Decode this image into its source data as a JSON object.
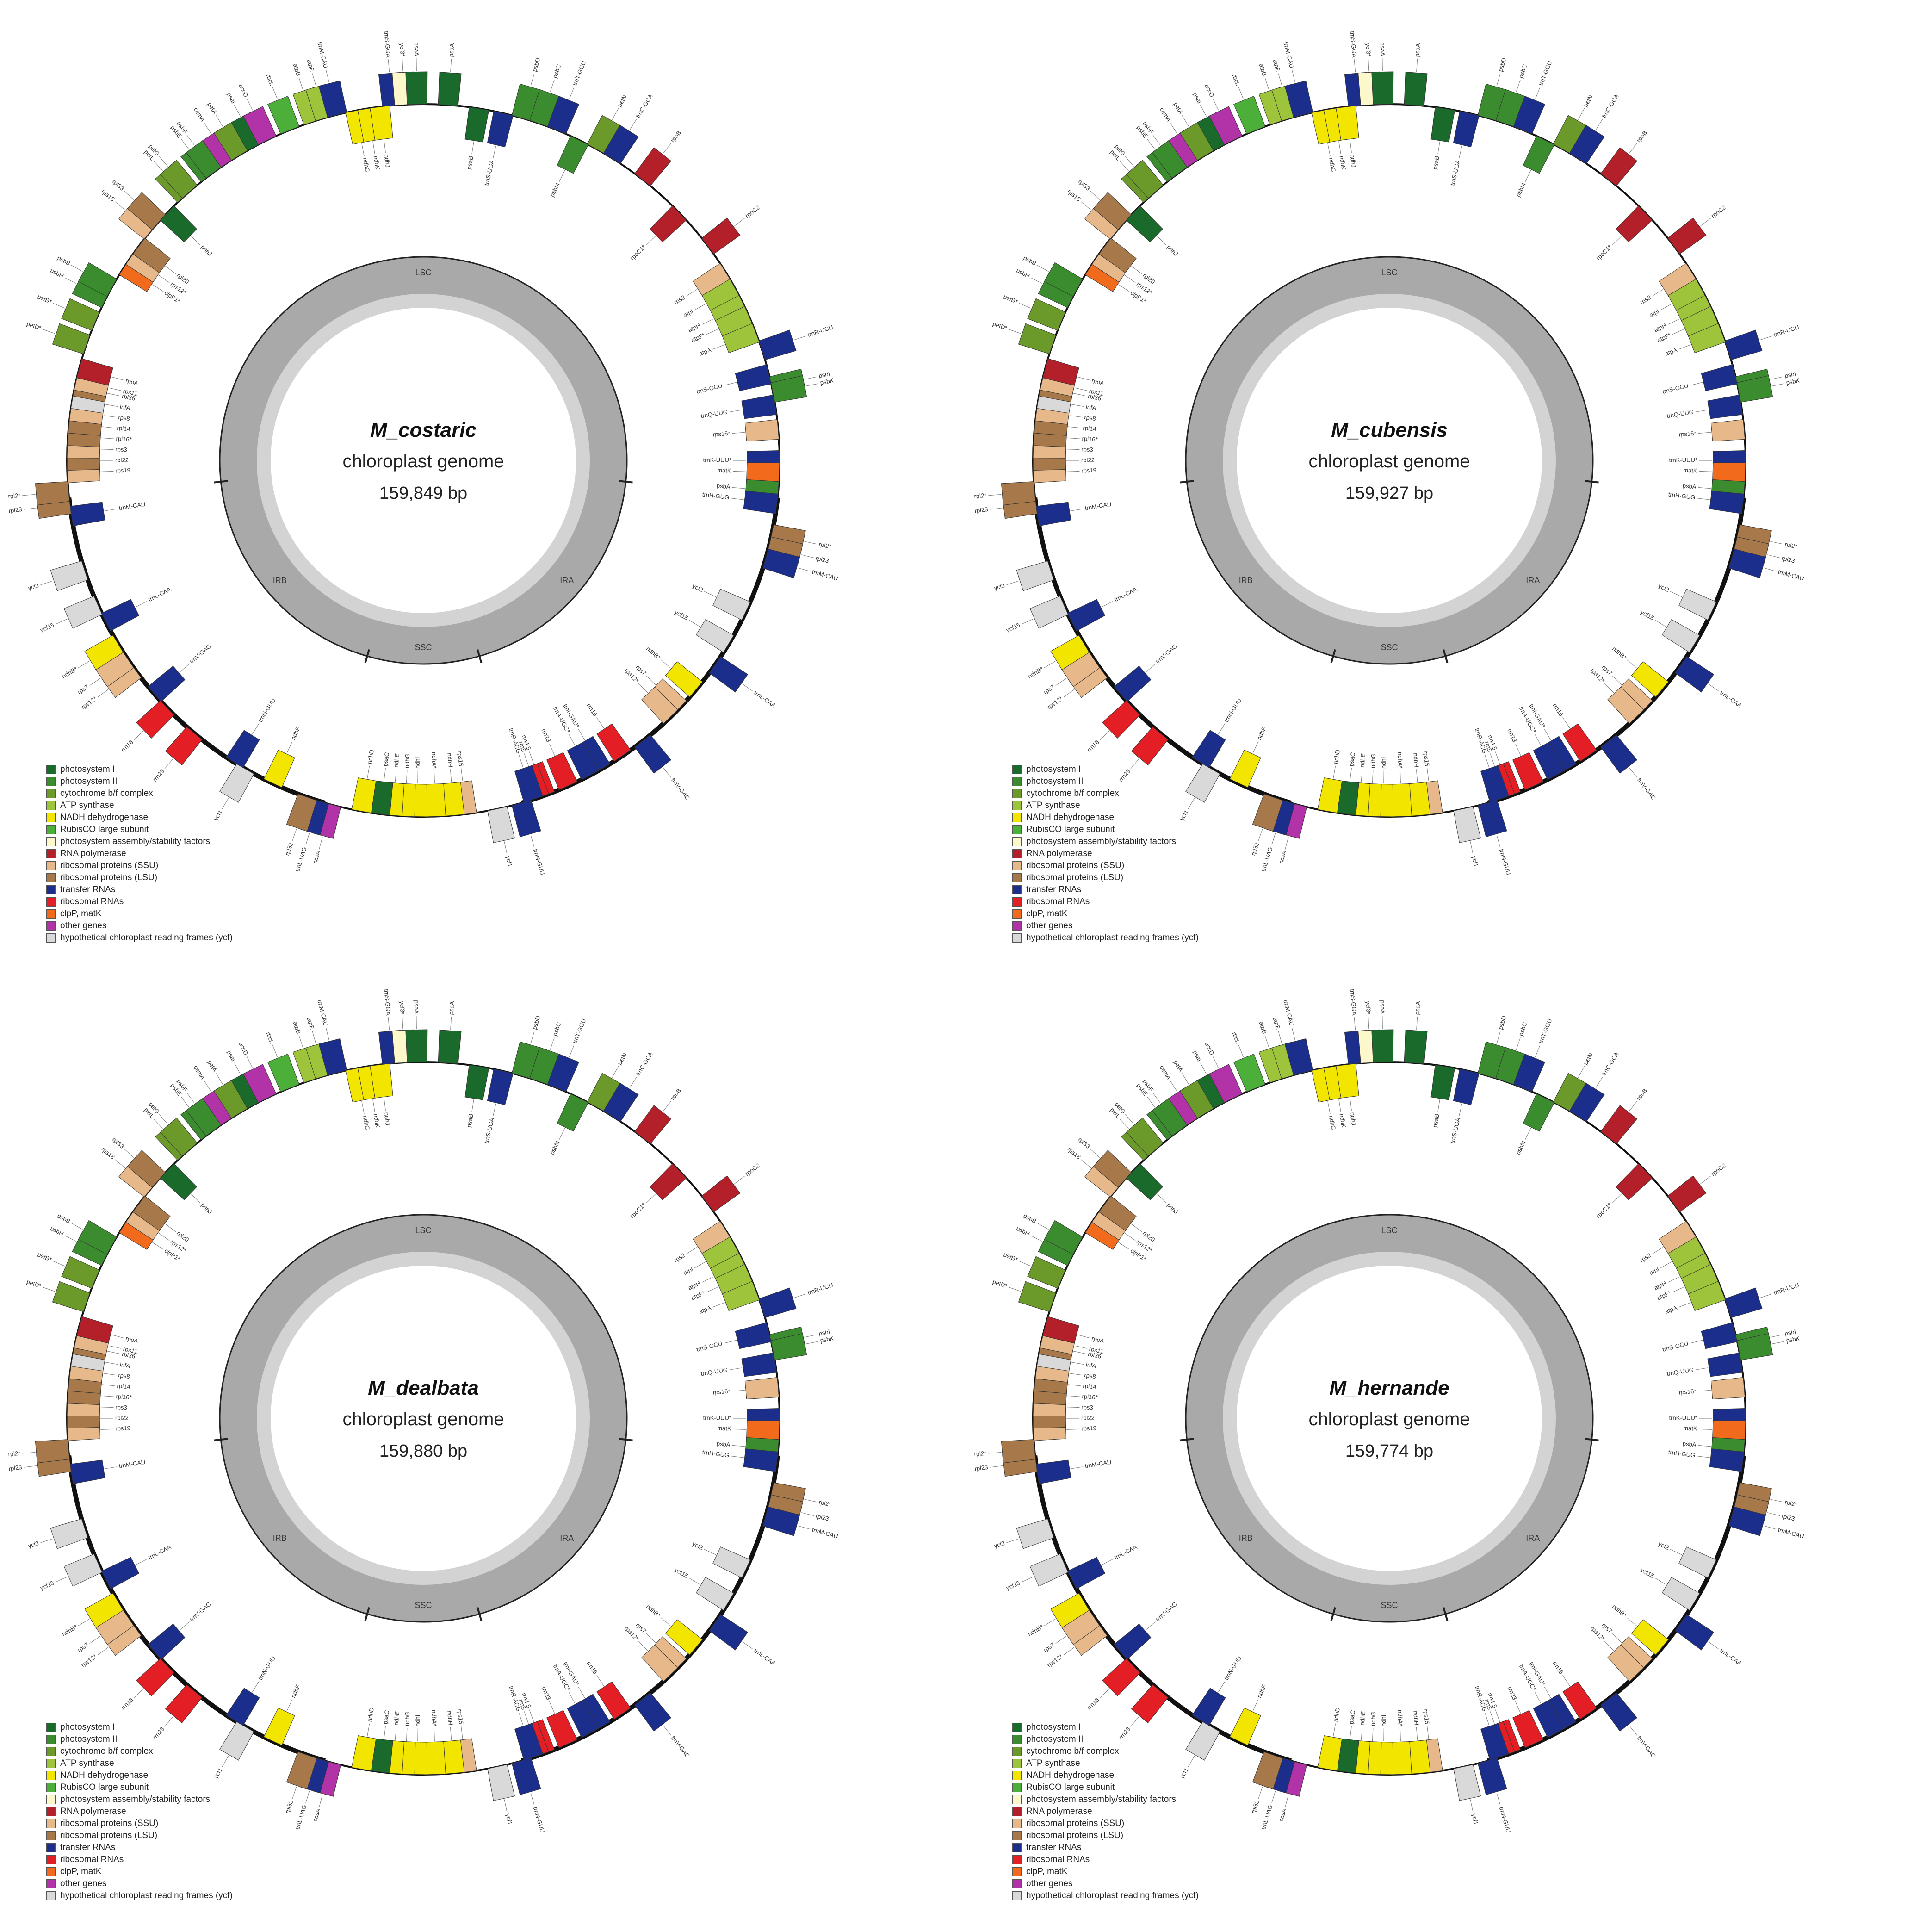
{
  "panels": [
    {
      "name": "M_costaric",
      "subtitle": "chloroplast genome",
      "length": "159,849 bp"
    },
    {
      "name": "M_cubensis",
      "subtitle": "chloroplast genome",
      "length": "159,927 bp"
    },
    {
      "name": "M_dealbata",
      "subtitle": "chloroplast genome",
      "length": "159,880 bp"
    },
    {
      "name": "M_hernande",
      "subtitle": "chloroplast genome",
      "length": "159,774 bp"
    }
  ],
  "region_labels": [
    "LSC",
    "IRA",
    "SSC",
    "IRB"
  ],
  "legend": [
    {
      "label": "photosystem I",
      "color": "#1a6b2b"
    },
    {
      "label": "photosystem II",
      "color": "#3a8c2f"
    },
    {
      "label": "cytochrome b/f complex",
      "color": "#6b9a2a"
    },
    {
      "label": "ATP synthase",
      "color": "#9dc43a"
    },
    {
      "label": "NADH dehydrogenase",
      "color": "#f2e600"
    },
    {
      "label": "RubisCO large subunit",
      "color": "#4caf3a"
    },
    {
      "label": "photosystem assembly/stability factors",
      "color": "#fdf7cc"
    },
    {
      "label": "RNA polymerase",
      "color": "#b3202a"
    },
    {
      "label": "ribosomal proteins (SSU)",
      "color": "#e6b88a"
    },
    {
      "label": "ribosomal proteins (LSU)",
      "color": "#a6784a"
    },
    {
      "label": "transfer RNAs",
      "color": "#1c2e8c"
    },
    {
      "label": "ribosomal RNAs",
      "color": "#e31e24"
    },
    {
      "label": "clpP, matK",
      "color": "#f26b1d"
    },
    {
      "label": "other genes",
      "color": "#b233a8"
    },
    {
      "label": "hypothetical chloroplast reading frames (ycf)",
      "color": "#d9d9d9"
    }
  ],
  "genes": [
    {
      "label": "psaA",
      "angle": 4,
      "color": "#1a6b2b",
      "out": true
    },
    {
      "label": "psaB",
      "angle": 9,
      "color": "#1a6b2b",
      "out": false
    },
    {
      "label": "trnS-UGA",
      "angle": 13,
      "color": "#1c2e8c",
      "out": false
    },
    {
      "label": "psbD",
      "angle": 16,
      "color": "#3a8c2f",
      "out": true
    },
    {
      "label": "psbC",
      "angle": 19,
      "color": "#3a8c2f",
      "out": true
    },
    {
      "label": "trnT-GGU",
      "angle": 22,
      "color": "#1c2e8c",
      "out": true
    },
    {
      "label": "psbM",
      "angle": 26,
      "color": "#3a8c2f",
      "out": false
    },
    {
      "label": "petN",
      "angle": 29,
      "color": "#6b9a2a",
      "out": true
    },
    {
      "label": "trnC-GCA",
      "angle": 32,
      "color": "#1c2e8c",
      "out": true
    },
    {
      "label": "rpoB",
      "angle": 38,
      "color": "#b3202a",
      "out": true
    },
    {
      "label": "rpoC1*",
      "angle": 46,
      "color": "#b3202a",
      "out": false
    },
    {
      "label": "rpoC2",
      "angle": 53,
      "color": "#b3202a",
      "out": true
    },
    {
      "label": "rps2",
      "angle": 58,
      "color": "#e6b88a",
      "out": false
    },
    {
      "label": "atpI",
      "angle": 61,
      "color": "#9dc43a",
      "out": false
    },
    {
      "label": "atpH",
      "angle": 64,
      "color": "#9dc43a",
      "out": false
    },
    {
      "label": "atpF*",
      "angle": 66,
      "color": "#9dc43a",
      "out": false
    },
    {
      "label": "atpA",
      "angle": 69,
      "color": "#9dc43a",
      "out": false
    },
    {
      "label": "trnR-UCU",
      "angle": 72,
      "color": "#1c2e8c",
      "out": true
    },
    {
      "label": "trnS-GCU",
      "angle": 76,
      "color": "#1c2e8c",
      "out": false
    },
    {
      "label": "psbI",
      "angle": 78,
      "color": "#3a8c2f",
      "out": true
    },
    {
      "label": "psbK",
      "angle": 79,
      "color": "#3a8c2f",
      "out": true
    },
    {
      "label": "trnQ-UUG",
      "angle": 81,
      "color": "#1c2e8c",
      "out": false
    },
    {
      "label": "rps16*",
      "angle": 85,
      "color": "#e6b88a",
      "out": false
    },
    {
      "label": "trnK-UUU*",
      "angle": 90,
      "color": "#1c2e8c",
      "out": false
    },
    {
      "label": "matK",
      "angle": 92,
      "color": "#f26b1d",
      "out": false
    },
    {
      "label": "psbA",
      "angle": 95,
      "color": "#3a8c2f",
      "out": false
    },
    {
      "label": "trnH-GUG",
      "angle": 97,
      "color": "#1c2e8c",
      "out": false
    },
    {
      "label": "rpl2*",
      "angle": 102,
      "color": "#a6784a",
      "out": true
    },
    {
      "label": "rpl23",
      "angle": 104,
      "color": "#a6784a",
      "out": true
    },
    {
      "label": "trnM-CAU",
      "angle": 106,
      "color": "#1c2e8c",
      "out": true
    },
    {
      "label": "ycf2",
      "angle": 115,
      "color": "#d9d9d9",
      "out": false
    },
    {
      "label": "ycf15",
      "angle": 121,
      "color": "#d9d9d9",
      "out": false
    },
    {
      "label": "trnL-CAA",
      "angle": 125,
      "color": "#1c2e8c",
      "out": true
    },
    {
      "label": "ndhB*",
      "angle": 130,
      "color": "#f2e600",
      "out": false
    },
    {
      "label": "rps7",
      "angle": 134,
      "color": "#e6b88a",
      "out": false
    },
    {
      "label": "rps12*",
      "angle": 136,
      "color": "#e6b88a",
      "out": false
    },
    {
      "label": "trnV-GAC",
      "angle": 142,
      "color": "#1c2e8c",
      "out": true
    },
    {
      "label": "rrn16",
      "angle": 146,
      "color": "#e31e24",
      "out": false
    },
    {
      "label": "trnI-GAU*",
      "angle": 150,
      "color": "#1c2e8c",
      "out": false
    },
    {
      "label": "trnA-UGC*",
      "angle": 152,
      "color": "#1c2e8c",
      "out": false
    },
    {
      "label": "rrn23",
      "angle": 156,
      "color": "#e31e24",
      "out": false
    },
    {
      "label": "rrn4.5",
      "angle": 160,
      "color": "#e31e24",
      "out": false
    },
    {
      "label": "rrn5",
      "angle": 161,
      "color": "#e31e24",
      "out": false
    },
    {
      "label": "trnR-ACG",
      "angle": 162,
      "color": "#1c2e8c",
      "out": false
    },
    {
      "label": "trnN-GUU",
      "angle": 164,
      "color": "#1c2e8c",
      "out": true
    },
    {
      "label": "ycf1",
      "angle": 168,
      "color": "#d9d9d9",
      "out": true
    },
    {
      "label": "rps15",
      "angle": 173,
      "color": "#e6b88a",
      "out": false
    },
    {
      "label": "ndhH",
      "angle": 175,
      "color": "#f2e600",
      "out": false
    },
    {
      "label": "ndhA*",
      "angle": 178,
      "color": "#f2e600",
      "out": false
    },
    {
      "label": "ndhI",
      "angle": 181,
      "color": "#f2e600",
      "out": false
    },
    {
      "label": "ndhG",
      "angle": 183,
      "color": "#f2e600",
      "out": false
    },
    {
      "label": "ndhE",
      "angle": 185,
      "color": "#f2e600",
      "out": false
    },
    {
      "label": "psaC",
      "angle": 187,
      "color": "#1a6b2b",
      "out": false
    },
    {
      "label": "ndhD",
      "angle": 190,
      "color": "#f2e600",
      "out": false
    },
    {
      "label": "ccsA",
      "angle": 195,
      "color": "#b233a8",
      "out": true
    },
    {
      "label": "trnL-UAG",
      "angle": 197,
      "color": "#1c2e8c",
      "out": true
    },
    {
      "label": "rpl32",
      "angle": 199,
      "color": "#a6784a",
      "out": true
    },
    {
      "label": "ndhF",
      "angle": 205,
      "color": "#f2e600",
      "out": false
    },
    {
      "label": "ycf1",
      "angle": 210,
      "color": "#d9d9d9",
      "out": true
    },
    {
      "label": "trnN-GUU",
      "angle": 212,
      "color": "#1c2e8c",
      "out": false
    },
    {
      "label": "rrn23",
      "angle": 220,
      "color": "#e31e24",
      "out": true
    },
    {
      "label": "rrn16",
      "angle": 226,
      "color": "#e31e24",
      "out": true
    },
    {
      "label": "trnV-GAC",
      "angle": 229,
      "color": "#1c2e8c",
      "out": false
    },
    {
      "label": "rps12*",
      "angle": 234,
      "color": "#e6b88a",
      "out": true
    },
    {
      "label": "rps7",
      "angle": 236,
      "color": "#e6b88a",
      "out": true
    },
    {
      "label": "ndhB*",
      "angle": 239,
      "color": "#f2e600",
      "out": true
    },
    {
      "label": "trnL-CAA",
      "angle": 243,
      "color": "#1c2e8c",
      "out": false
    },
    {
      "label": "ycf15",
      "angle": 246,
      "color": "#d9d9d9",
      "out": true
    },
    {
      "label": "ycf2",
      "angle": 252,
      "color": "#d9d9d9",
      "out": true
    },
    {
      "label": "trnM-CAU",
      "angle": 261,
      "color": "#1c2e8c",
      "out": false
    },
    {
      "label": "rpl23",
      "angle": 263,
      "color": "#a6784a",
      "out": true
    },
    {
      "label": "rpl2*",
      "angle": 265,
      "color": "#a6784a",
      "out": true
    },
    {
      "label": "rps19",
      "angle": 268,
      "color": "#e6b88a",
      "out": false
    },
    {
      "label": "rpl22",
      "angle": 270,
      "color": "#a6784a",
      "out": false
    },
    {
      "label": "rps3",
      "angle": 272,
      "color": "#e6b88a",
      "out": false
    },
    {
      "label": "rpl16*",
      "angle": 274,
      "color": "#a6784a",
      "out": false
    },
    {
      "label": "rpl14",
      "angle": 276,
      "color": "#a6784a",
      "out": false
    },
    {
      "label": "rps8",
      "angle": 278,
      "color": "#e6b88a",
      "out": false
    },
    {
      "label": "infA",
      "angle": 280,
      "color": "#d9d9d9",
      "out": false
    },
    {
      "label": "rpl36",
      "angle": 282,
      "color": "#a6784a",
      "out": false
    },
    {
      "label": "rps11",
      "angle": 283,
      "color": "#e6b88a",
      "out": false
    },
    {
      "label": "rpoA",
      "angle": 285,
      "color": "#b3202a",
      "out": false
    },
    {
      "label": "petD*",
      "angle": 289,
      "color": "#6b9a2a",
      "out": true
    },
    {
      "label": "petB*",
      "angle": 293,
      "color": "#6b9a2a",
      "out": true
    },
    {
      "label": "psbH",
      "angle": 297,
      "color": "#3a8c2f",
      "out": true
    },
    {
      "label": "psbB",
      "angle": 299,
      "color": "#3a8c2f",
      "out": true
    },
    {
      "label": "clpP1*",
      "angle": 303,
      "color": "#f26b1d",
      "out": false
    },
    {
      "label": "rps12*",
      "angle": 305,
      "color": "#e6b88a",
      "out": false
    },
    {
      "label": "rpl20",
      "angle": 307,
      "color": "#a6784a",
      "out": false
    },
    {
      "label": "rps18",
      "angle": 310,
      "color": "#e6b88a",
      "out": true
    },
    {
      "label": "rpl33",
      "angle": 312,
      "color": "#a6784a",
      "out": true
    },
    {
      "label": "psaJ",
      "angle": 314,
      "color": "#1a6b2b",
      "out": false
    },
    {
      "label": "petL",
      "angle": 318,
      "color": "#6b9a2a",
      "out": true
    },
    {
      "label": "petG",
      "angle": 319,
      "color": "#6b9a2a",
      "out": true
    },
    {
      "label": "psbE",
      "angle": 323,
      "color": "#3a8c2f",
      "out": true
    },
    {
      "label": "psbF",
      "angle": 324,
      "color": "#3a8c2f",
      "out": true
    },
    {
      "label": "cemA",
      "angle": 327,
      "color": "#b233a8",
      "out": true
    },
    {
      "label": "petA",
      "angle": 329,
      "color": "#6b9a2a",
      "out": true
    },
    {
      "label": "psaI",
      "angle": 332,
      "color": "#1a6b2b",
      "out": true
    },
    {
      "label": "accD",
      "angle": 334,
      "color": "#b233a8",
      "out": true
    },
    {
      "label": "rbcL",
      "angle": 338,
      "color": "#4caf3a",
      "out": true
    },
    {
      "label": "atpB",
      "angle": 342,
      "color": "#9dc43a",
      "out": true
    },
    {
      "label": "atpE",
      "angle": 344,
      "color": "#9dc43a",
      "out": true
    },
    {
      "label": "trnM-CAU",
      "angle": 346,
      "color": "#1c2e8c",
      "out": true
    },
    {
      "label": "ndhC",
      "angle": 349,
      "color": "#f2e600",
      "out": false
    },
    {
      "label": "ndhK",
      "angle": 351,
      "color": "#f2e600",
      "out": false
    },
    {
      "label": "ndhJ",
      "angle": 353,
      "color": "#f2e600",
      "out": false
    },
    {
      "label": "trnS-GGA",
      "angle": 355,
      "color": "#1c2e8c",
      "out": true
    },
    {
      "label": "ycf3*",
      "angle": 357,
      "color": "#fdf7cc",
      "out": true
    },
    {
      "label": "psaA",
      "angle": 359,
      "color": "#1a6b2b",
      "out": true
    }
  ]
}
